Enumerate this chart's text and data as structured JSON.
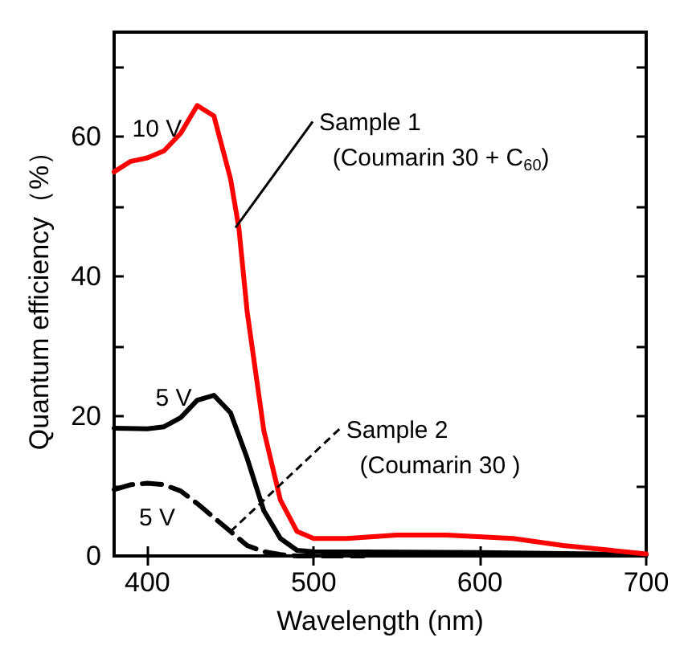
{
  "chart_data": {
    "type": "line",
    "xlabel": "Wavelength (nm)",
    "ylabel": "Quantum efficiency（%）",
    "xlim": [
      380,
      700
    ],
    "xticks": [
      400,
      500,
      600,
      700
    ],
    "ylim": [
      0,
      75
    ],
    "yticks": [
      0,
      {
        "value": 10,
        "label": null
      },
      20,
      {
        "value": 30,
        "label": null
      },
      40,
      {
        "value": 50,
        "label": null
      },
      60,
      {
        "value": 70,
        "label": null
      }
    ],
    "grid": false,
    "legend": false,
    "marker": "none",
    "series": [
      {
        "name": "10 V",
        "color": "#ff0000",
        "line_style": "solid",
        "x": [
          380,
          390,
          400,
          410,
          420,
          430,
          440,
          450,
          455,
          460,
          470,
          480,
          490,
          500,
          520,
          550,
          580,
          620,
          650,
          700
        ],
        "values": [
          55,
          56.5,
          57,
          58,
          60.5,
          64.5,
          63,
          54,
          47,
          35,
          18,
          8,
          3.5,
          2.5,
          2.5,
          3,
          3,
          2.5,
          1.5,
          0.3
        ]
      },
      {
        "name": "5 V",
        "color": "#000000",
        "line_style": "solid",
        "x": [
          380,
          400,
          410,
          420,
          430,
          440,
          450,
          460,
          470,
          480,
          490,
          500,
          600,
          700
        ],
        "values": [
          18.3,
          18.2,
          18.5,
          19.8,
          22.3,
          23,
          20.5,
          14,
          6.5,
          2.5,
          0.8,
          0.6,
          0.5,
          0.2
        ]
      },
      {
        "name": "5 V",
        "color": "#000000",
        "line_style": "dashed",
        "x": [
          380,
          390,
          400,
          410,
          420,
          430,
          440,
          450,
          460,
          470,
          480,
          490,
          500,
          530
        ],
        "values": [
          9.5,
          10.2,
          10.4,
          10.2,
          9.3,
          7.5,
          5.5,
          3.5,
          1.5,
          0.6,
          0.2,
          0,
          0,
          0
        ]
      }
    ],
    "annotations": [
      {
        "text": "Sample 1\n  (Coumarin 30 + C$_{60}$)",
        "x": 453,
        "y": 47
      },
      {
        "text": "Sample 2\n  (Coumarin 30 )",
        "x": 450,
        "y": 3.5
      }
    ]
  }
}
